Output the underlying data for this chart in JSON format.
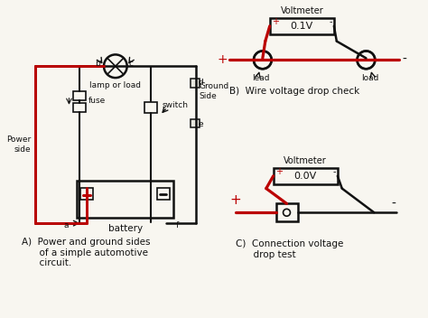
{
  "bg_color": "#f8f6f0",
  "text_color": "#1a1a1a",
  "red_color": "#bb0000",
  "dark_color": "#111111",
  "label_A": "A)  Power and ground sides\n      of a simple automotive\n      circuit.",
  "label_B": "B)  Wire voltage drop check",
  "label_C": "C)  Connection voltage\n      drop test",
  "voltmeter_B": "0.1V",
  "voltmeter_C": "0.0V"
}
